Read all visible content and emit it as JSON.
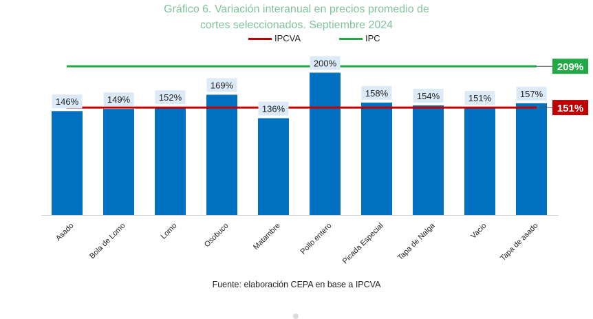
{
  "chart_data": {
    "type": "bar",
    "title_line1": "Gráfico 6. Variación interanual en precios promedio de",
    "title_line2": "cortes seleccionados. Septiembre 2024",
    "categories": [
      "Asado",
      "Bola de Lomo",
      "Lomo",
      "Osobuco",
      "Matambre",
      "Pollo entero",
      "Picada Especial",
      "Tapa de Nalga",
      "Vacio",
      "Tapa de asado"
    ],
    "values": [
      146,
      149,
      152,
      169,
      136,
      200,
      158,
      154,
      151,
      157
    ],
    "value_labels": [
      "146%",
      "149%",
      "152%",
      "169%",
      "136%",
      "200%",
      "158%",
      "154%",
      "151%",
      "157%"
    ],
    "ylim": [
      0,
      215
    ],
    "bar_color": "#0070c0",
    "reference_lines": [
      {
        "name": "IPCVA",
        "value": 151,
        "label": "151%",
        "color": "#c00000"
      },
      {
        "name": "IPC",
        "value": 209,
        "label": "209%",
        "color": "#22a845"
      }
    ],
    "legend_position": "top-center",
    "grid": false
  },
  "source": "Fuente: elaboración CEPA en base a IPCVA"
}
